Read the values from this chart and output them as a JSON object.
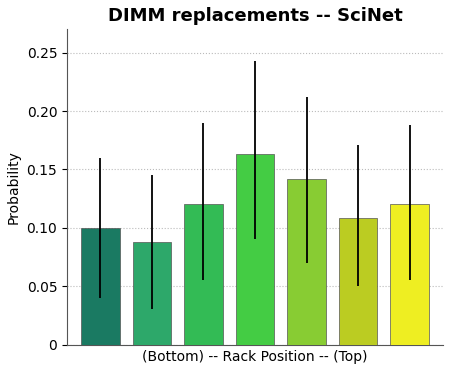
{
  "title": "DIMM replacements -- SciNet",
  "xlabel": "(Bottom) -- Rack Position -- (Top)",
  "ylabel": "Probability",
  "bar_values": [
    0.1,
    0.088,
    0.12,
    0.163,
    0.142,
    0.108,
    0.12
  ],
  "bar_errors_low": [
    0.06,
    0.058,
    0.065,
    0.073,
    0.072,
    0.058,
    0.065
  ],
  "bar_errors_high": [
    0.06,
    0.057,
    0.07,
    0.08,
    0.07,
    0.063,
    0.068
  ],
  "bar_colors": [
    "#1a7a62",
    "#2da86a",
    "#33bb55",
    "#44cc44",
    "#88cc33",
    "#bbcc22",
    "#eeee22"
  ],
  "bar_positions": [
    1,
    2,
    3,
    4,
    5,
    6,
    7
  ],
  "bar_width": 0.75,
  "ylim": [
    0,
    0.27
  ],
  "yticks": [
    0,
    0.05,
    0.1,
    0.15,
    0.2,
    0.25
  ],
  "ytick_labels": [
    "0",
    "0.05",
    "0.10",
    "0.15",
    "0.20",
    "0.25"
  ],
  "title_fontsize": 13,
  "label_fontsize": 10,
  "tick_fontsize": 10,
  "background_color": "#ffffff",
  "grid_color": "#bbbbbb",
  "error_linewidth": 1.3,
  "xlim": [
    0.35,
    7.65
  ]
}
